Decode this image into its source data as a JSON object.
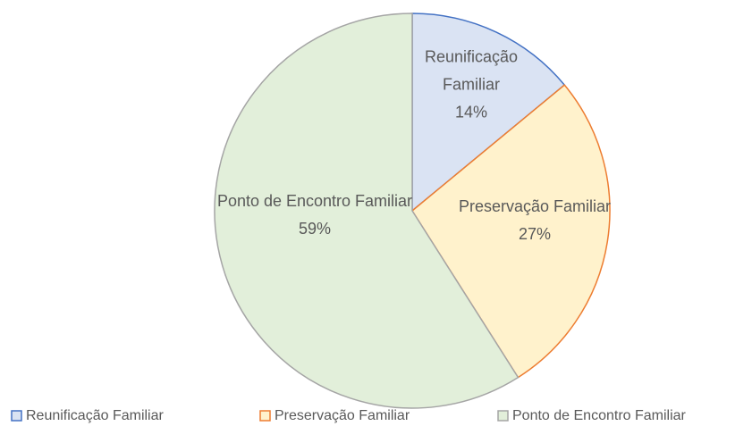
{
  "chart_data": {
    "type": "pie",
    "categories": [
      "Reunificação Familiar",
      "Preservação Familiar",
      "Ponto de Encontro Familiar"
    ],
    "values": [
      14,
      27,
      59
    ],
    "value_labels": [
      "14%",
      "27%",
      "59%"
    ],
    "colors": [
      "#dae3f3",
      "#fff2cc",
      "#e2efda"
    ],
    "edge_colors": [
      "#4472c4",
      "#ed7d31",
      "#a5a5a5"
    ],
    "legend": "bottom"
  }
}
